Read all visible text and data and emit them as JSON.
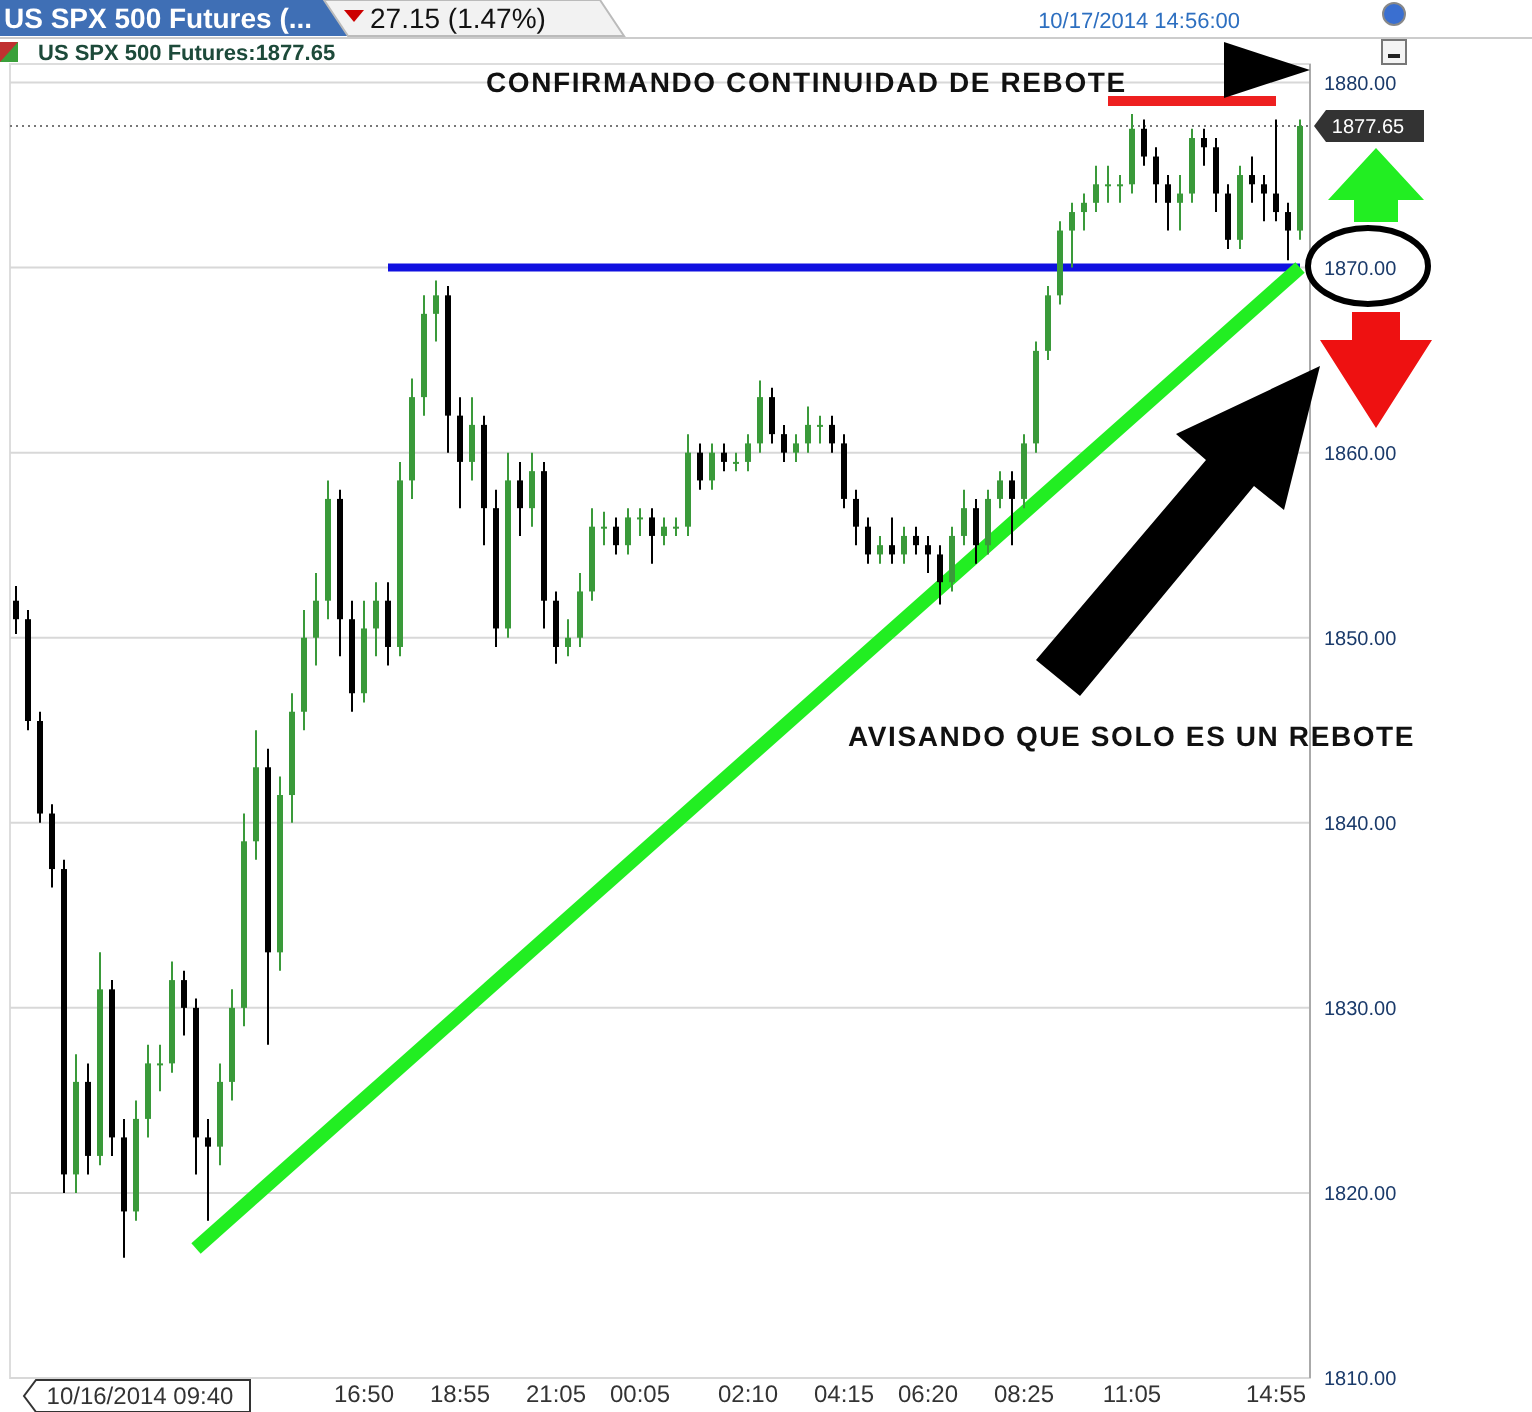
{
  "chart_data": {
    "type": "candlestick",
    "title": "US SPX 500 Futures (...",
    "annotations": [
      "27.15 (1.47%)",
      "10/17/2014 14:56:00",
      "US SPX 500 Futures:1877.65",
      "10/16/2014 09:40",
      "CONFIRMANDO CONTINUIDAD DE REBOTE",
      "AVISANDO QUE SOLO ES UN REBOTE"
    ],
    "categories": [
      null,
      null,
      null,
      null,
      null,
      null,
      null,
      null,
      null,
      null,
      null,
      null,
      null,
      null,
      null,
      null,
      null,
      null,
      null,
      null,
      null,
      null,
      null,
      null,
      null,
      null,
      null,
      null,
      null,
      "16:50",
      null,
      null,
      null,
      null,
      null,
      null,
      null,
      "18:55",
      null,
      null,
      null,
      null,
      null,
      null,
      null,
      "21:05",
      null,
      null,
      null,
      null,
      null,
      null,
      "00:05",
      null,
      null,
      null,
      null,
      null,
      null,
      null,
      null,
      "02:10",
      null,
      null,
      null,
      null,
      null,
      null,
      null,
      "04:15",
      null,
      null,
      null,
      null,
      null,
      null,
      "06:20",
      null,
      null,
      null,
      null,
      null,
      null,
      null,
      "08:25",
      null,
      null,
      null,
      null,
      null,
      null,
      null,
      null,
      "11:05",
      null,
      null,
      null,
      null,
      null,
      null,
      null,
      null,
      null,
      null,
      null,
      "14:55",
      null,
      null
    ],
    "series": [
      {
        "ohlc": [
          [
            1852,
            1852.8,
            1850.2,
            1851
          ],
          [
            1851,
            1851.5,
            1845,
            1845.5
          ],
          [
            1845.5,
            1846,
            1840,
            1840.5
          ],
          [
            1840.5,
            1841,
            1836.5,
            1837.5
          ],
          [
            1837.5,
            1838,
            1820,
            1821
          ],
          [
            1821,
            1827.5,
            1820,
            1826
          ],
          [
            1826,
            1827,
            1821,
            1822
          ],
          [
            1822,
            1833,
            1821.5,
            1831
          ],
          [
            1831,
            1831.5,
            1822,
            1823
          ],
          [
            1823,
            1824,
            1816.5,
            1819
          ],
          [
            1819,
            1825,
            1818.5,
            1824
          ],
          [
            1824,
            1828,
            1823,
            1827
          ],
          [
            1827,
            1828,
            1825.5,
            1827
          ],
          [
            1827,
            1832.5,
            1826.5,
            1831.5
          ],
          [
            1831.5,
            1832,
            1828.5,
            1830
          ],
          [
            1830,
            1830.5,
            1821,
            1823
          ],
          [
            1823,
            1824,
            1818.5,
            1822.5
          ],
          [
            1822.5,
            1827,
            1821.5,
            1826
          ],
          [
            1826,
            1831,
            1825,
            1830
          ],
          [
            1830,
            1840.5,
            1829,
            1839
          ],
          [
            1839,
            1845,
            1838,
            1843
          ],
          [
            1843,
            1844,
            1828,
            1833
          ],
          [
            1833,
            1842.5,
            1832,
            1841.5
          ],
          [
            1841.5,
            1847,
            1840,
            1846
          ],
          [
            1846,
            1851.5,
            1845,
            1850
          ],
          [
            1850,
            1853.5,
            1848.5,
            1852
          ],
          [
            1852,
            1858.5,
            1851,
            1857.5
          ],
          [
            1857.5,
            1858,
            1849,
            1851
          ],
          [
            1851,
            1852,
            1846,
            1847
          ],
          [
            1847,
            1852,
            1846.5,
            1850.5
          ],
          [
            1850.5,
            1853,
            1849,
            1852
          ],
          [
            1852,
            1853,
            1848.5,
            1849.5
          ],
          [
            1849.5,
            1859.5,
            1849,
            1858.5
          ],
          [
            1858.5,
            1864,
            1857.5,
            1863
          ],
          [
            1863,
            1868.5,
            1862,
            1867.5
          ],
          [
            1867.5,
            1869.3,
            1866,
            1868.5
          ],
          [
            1868.5,
            1869,
            1860,
            1862
          ],
          [
            1862,
            1863,
            1857,
            1859.5
          ],
          [
            1859.5,
            1863,
            1858.5,
            1861.5
          ],
          [
            1861.5,
            1862,
            1855,
            1857
          ],
          [
            1857,
            1858,
            1849.5,
            1850.5
          ],
          [
            1850.5,
            1860,
            1850,
            1858.5
          ],
          [
            1858.5,
            1859.5,
            1855.5,
            1857
          ],
          [
            1857,
            1860,
            1856,
            1859
          ],
          [
            1859,
            1859.5,
            1850.5,
            1852
          ],
          [
            1852,
            1852.5,
            1848.6,
            1849.5
          ],
          [
            1849.5,
            1851,
            1849,
            1850
          ],
          [
            1850,
            1853.5,
            1849.5,
            1852.5
          ],
          [
            1852.5,
            1857,
            1852,
            1856
          ],
          [
            1856,
            1856.8,
            1855,
            1856
          ],
          [
            1856,
            1856.5,
            1854.5,
            1855
          ],
          [
            1855,
            1857,
            1854.5,
            1856.5
          ],
          [
            1856.5,
            1857,
            1855.5,
            1856.5
          ],
          [
            1856.5,
            1857,
            1854,
            1855.5
          ],
          [
            1855.5,
            1856.5,
            1855,
            1856
          ],
          [
            1856,
            1856.5,
            1855.5,
            1856
          ],
          [
            1856,
            1861,
            1855.5,
            1860
          ],
          [
            1860,
            1860.5,
            1858,
            1858.5
          ],
          [
            1858.5,
            1860.5,
            1858,
            1860
          ],
          [
            1860,
            1860.5,
            1859,
            1859.5
          ],
          [
            1859.5,
            1860,
            1859,
            1859.5
          ],
          [
            1859.5,
            1861,
            1859,
            1860.5
          ],
          [
            1860.5,
            1863.9,
            1860,
            1863
          ],
          [
            1863,
            1863.5,
            1860.5,
            1861
          ],
          [
            1861,
            1861.5,
            1859.5,
            1860
          ],
          [
            1860,
            1861,
            1859.5,
            1860.5
          ],
          [
            1860.5,
            1862.5,
            1860,
            1861.5
          ],
          [
            1861.5,
            1862,
            1860.5,
            1861.5
          ],
          [
            1861.5,
            1862,
            1860,
            1860.5
          ],
          [
            1860.5,
            1861,
            1857,
            1857.5
          ],
          [
            1857.5,
            1858,
            1855,
            1856
          ],
          [
            1856,
            1856.5,
            1854,
            1854.5
          ],
          [
            1854.5,
            1855.5,
            1854,
            1855
          ],
          [
            1855,
            1856.5,
            1854,
            1854.5
          ],
          [
            1854.5,
            1856,
            1854,
            1855.5
          ],
          [
            1855.5,
            1856,
            1854.5,
            1855
          ],
          [
            1855,
            1855.5,
            1853.5,
            1854.5
          ],
          [
            1854.5,
            1855,
            1851.8,
            1853
          ],
          [
            1853,
            1856,
            1852.5,
            1855.5
          ],
          [
            1855.5,
            1858,
            1855,
            1857
          ],
          [
            1857,
            1857.5,
            1854,
            1855
          ],
          [
            1855,
            1858,
            1854.5,
            1857.5
          ],
          [
            1857.5,
            1859,
            1857,
            1858.5
          ],
          [
            1858.5,
            1859,
            1855,
            1857.5
          ],
          [
            1857.5,
            1861,
            1857,
            1860.5
          ],
          [
            1860.5,
            1866,
            1860,
            1865.5
          ],
          [
            1865.5,
            1869,
            1865,
            1868.5
          ],
          [
            1868.5,
            1872.5,
            1868,
            1872
          ],
          [
            1872,
            1873.5,
            1870,
            1873
          ],
          [
            1873,
            1874,
            1872,
            1873.5
          ],
          [
            1873.5,
            1875.5,
            1873,
            1874.5
          ],
          [
            1874.5,
            1875.5,
            1873.5,
            1874.5
          ],
          [
            1874.5,
            1875,
            1873.5,
            1874.5
          ],
          [
            1874.5,
            1878.3,
            1874,
            1877.5
          ],
          [
            1877.5,
            1878,
            1875.5,
            1876
          ],
          [
            1876,
            1876.5,
            1873.5,
            1874.5
          ],
          [
            1874.5,
            1875,
            1872,
            1873.5
          ],
          [
            1873.5,
            1875,
            1872,
            1874
          ],
          [
            1874,
            1877.5,
            1873.5,
            1877
          ],
          [
            1877,
            1877.5,
            1875.5,
            1876.5
          ],
          [
            1876.5,
            1877,
            1873,
            1874
          ],
          [
            1874,
            1874.5,
            1871,
            1871.5
          ],
          [
            1871.5,
            1875.5,
            1871,
            1875
          ],
          [
            1875,
            1876,
            1873.5,
            1874.5
          ],
          [
            1874.5,
            1875,
            1872.5,
            1874
          ],
          [
            1874,
            1878,
            1872.5,
            1873
          ],
          [
            1873,
            1873.5,
            1870.4,
            1872
          ],
          [
            1872,
            1878,
            1871.5,
            1877.65
          ]
        ],
        "colors": [
          "#000000",
          "#000000",
          "#000000",
          "#000000",
          "#000000",
          "#3a9a3a",
          "#000000",
          "#3a9a3a",
          "#000000",
          "#000000",
          "#3a9a3a",
          "#3a9a3a",
          "#3a9a3a",
          "#3a9a3a",
          "#000000",
          "#000000",
          "#000000",
          "#3a9a3a",
          "#3a9a3a",
          "#3a9a3a",
          "#3a9a3a",
          "#000000",
          "#3a9a3a",
          "#3a9a3a",
          "#3a9a3a",
          "#3a9a3a",
          "#3a9a3a",
          "#000000",
          "#000000",
          "#3a9a3a",
          "#3a9a3a",
          "#000000",
          "#3a9a3a",
          "#3a9a3a",
          "#3a9a3a",
          "#3a9a3a",
          "#000000",
          "#000000",
          "#3a9a3a",
          "#000000",
          "#000000",
          "#3a9a3a",
          "#000000",
          "#3a9a3a",
          "#000000",
          "#000000",
          "#3a9a3a",
          "#3a9a3a",
          "#3a9a3a",
          "#3a9a3a",
          "#000000",
          "#3a9a3a",
          "#3a9a3a",
          "#000000",
          "#3a9a3a",
          "#3a9a3a",
          "#3a9a3a",
          "#000000",
          "#3a9a3a",
          "#000000",
          "#3a9a3a",
          "#3a9a3a",
          "#3a9a3a",
          "#000000",
          "#000000",
          "#3a9a3a",
          "#3a9a3a",
          "#3a9a3a",
          "#000000",
          "#000000",
          "#000000",
          "#000000",
          "#3a9a3a",
          "#000000",
          "#3a9a3a",
          "#000000",
          "#000000",
          "#000000",
          "#3a9a3a",
          "#3a9a3a",
          "#000000",
          "#3a9a3a",
          "#3a9a3a",
          "#000000",
          "#3a9a3a",
          "#3a9a3a",
          "#3a9a3a",
          "#3a9a3a",
          "#3a9a3a",
          "#3a9a3a",
          "#3a9a3a",
          "#3a9a3a",
          "#3a9a3a",
          "#3a9a3a",
          "#000000",
          "#000000",
          "#000000",
          "#3a9a3a",
          "#3a9a3a",
          "#000000",
          "#000000",
          "#000000",
          "#3a9a3a",
          "#000000",
          "#000000",
          "#000000",
          "#000000",
          "#3a9a3a"
        ]
      },
      {
        "type": "line",
        "color": "#1010e0",
        "values": [
          null,
          null,
          null,
          null,
          null,
          null,
          null,
          null,
          null,
          null,
          null,
          null,
          null,
          null,
          null,
          null,
          null,
          null,
          null,
          null,
          null,
          null,
          null,
          null,
          null,
          null,
          null,
          null,
          null,
          null,
          null,
          1870,
          null,
          null,
          null,
          null,
          null,
          null,
          null,
          null,
          null,
          null,
          null,
          null,
          null,
          null,
          null,
          null,
          null,
          null,
          null,
          null,
          null,
          null,
          null,
          null,
          null,
          null,
          null,
          null,
          null,
          null,
          null,
          null,
          null,
          null,
          null,
          null,
          null,
          null,
          null,
          null,
          null,
          null,
          null,
          null,
          null,
          null,
          null,
          null,
          null,
          null,
          null,
          null,
          null,
          null,
          null,
          null,
          null,
          null,
          null,
          null,
          null,
          null,
          null,
          null,
          null,
          null,
          null,
          null,
          null,
          null,
          null,
          null,
          null,
          null,
          null,
          1870
        ]
      },
      {
        "type": "line",
        "color": "#ee2020",
        "values": [
          null,
          null,
          null,
          null,
          null,
          null,
          null,
          null,
          null,
          null,
          null,
          null,
          null,
          null,
          null,
          null,
          null,
          null,
          null,
          null,
          null,
          null,
          null,
          null,
          null,
          null,
          null,
          null,
          null,
          null,
          null,
          null,
          null,
          null,
          null,
          null,
          null,
          null,
          null,
          null,
          null,
          null,
          null,
          null,
          null,
          null,
          null,
          null,
          null,
          null,
          null,
          null,
          null,
          null,
          null,
          null,
          null,
          null,
          null,
          null,
          null,
          null,
          null,
          null,
          null,
          null,
          null,
          null,
          null,
          null,
          null,
          null,
          null,
          null,
          null,
          null,
          null,
          null,
          null,
          null,
          null,
          null,
          null,
          null,
          null,
          null,
          null,
          null,
          null,
          null,
          null,
          1879,
          null,
          null,
          null,
          null,
          null,
          null,
          null,
          null,
          null,
          null,
          null,
          null,
          null,
          1879,
          null,
          null
        ]
      },
      {
        "type": "line",
        "color": "#22ee22",
        "values": [
          null,
          null,
          null,
          null,
          null,
          null,
          null,
          null,
          null,
          null,
          null,
          null,
          null,
          null,
          null,
          1817,
          null,
          null,
          null,
          null,
          null,
          null,
          null,
          null,
          null,
          null,
          null,
          null,
          null,
          null,
          null,
          null,
          null,
          null,
          null,
          null,
          null,
          null,
          null,
          null,
          null,
          null,
          null,
          null,
          null,
          null,
          null,
          null,
          null,
          null,
          null,
          null,
          null,
          null,
          null,
          null,
          null,
          null,
          null,
          null,
          null,
          null,
          null,
          null,
          null,
          null,
          null,
          null,
          null,
          null,
          null,
          null,
          null,
          null,
          null,
          null,
          null,
          null,
          null,
          null,
          null,
          null,
          null,
          null,
          null,
          null,
          null,
          null,
          null,
          null,
          null,
          null,
          null,
          null,
          null,
          null,
          null,
          null,
          null,
          null,
          null,
          null,
          null,
          null,
          null,
          null,
          null,
          1870
        ]
      }
    ],
    "ylim": [
      1810,
      1881
    ],
    "yticks": [
      {
        "value": 1810,
        "label": "1810.00"
      },
      {
        "value": 1820,
        "label": "1820.00"
      },
      {
        "value": 1830,
        "label": "1830.00"
      },
      {
        "value": 1840,
        "label": "1840.00"
      },
      {
        "value": 1850,
        "label": "1850.00"
      },
      {
        "value": 1860,
        "label": "1860.00"
      },
      {
        "value": 1870,
        "label": "1870.00"
      },
      {
        "value": 1880,
        "label": "1880.00"
      }
    ],
    "ref_lines": [
      {
        "axis": "y",
        "value": 1877.65,
        "label": "1877.65",
        "color": "#777777",
        "line_style": "dotted"
      }
    ],
    "grid": "y"
  }
}
